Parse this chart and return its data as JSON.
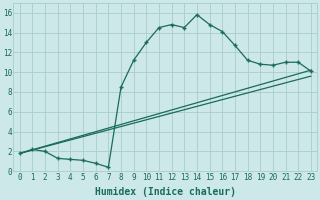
{
  "xlabel": "Humidex (Indice chaleur)",
  "background_color": "#cce8e8",
  "grid_color": "#aacccc",
  "line_color": "#1a6b5a",
  "xlim": [
    -0.5,
    23.5
  ],
  "ylim": [
    0,
    17
  ],
  "xticks": [
    0,
    1,
    2,
    3,
    4,
    5,
    6,
    7,
    8,
    9,
    10,
    11,
    12,
    13,
    14,
    15,
    16,
    17,
    18,
    19,
    20,
    21,
    22,
    23
  ],
  "yticks": [
    0,
    2,
    4,
    6,
    8,
    10,
    12,
    14,
    16
  ],
  "line1_x": [
    0,
    1,
    2,
    3,
    4,
    5,
    6,
    7,
    8,
    9,
    10,
    11,
    12,
    13,
    14,
    15,
    16,
    17,
    18,
    19,
    20,
    21,
    22,
    23
  ],
  "line1_y": [
    1.8,
    2.2,
    2.0,
    1.3,
    1.2,
    1.1,
    0.8,
    0.4,
    8.5,
    11.2,
    13.0,
    14.5,
    14.8,
    14.5,
    15.8,
    14.8,
    14.1,
    12.7,
    11.2,
    10.8,
    10.7,
    11.0,
    11.0,
    10.1
  ],
  "line2_x": [
    0,
    23
  ],
  "line2_y": [
    1.8,
    10.2
  ],
  "line3_x": [
    0,
    23
  ],
  "line3_y": [
    1.8,
    9.6
  ],
  "marker": "+",
  "markersize": 3,
  "linewidth": 0.9,
  "xlabel_fontsize": 7,
  "tick_fontsize": 5.5
}
